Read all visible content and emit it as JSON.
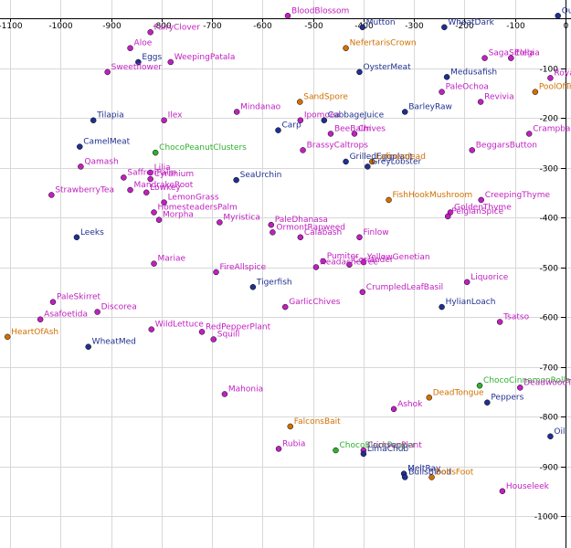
{
  "chart_data": {
    "type": "scatter",
    "title": "",
    "xlabel": "",
    "ylabel": "",
    "xlim": [
      -1110,
      0
    ],
    "ylim": [
      -1055,
      0
    ],
    "grid": true,
    "x_ticks": [
      -1100,
      -1000,
      -900,
      -800,
      -700,
      -600,
      -500,
      -400,
      -300,
      -200,
      -100,
      0
    ],
    "y_ticks": [
      -100,
      -200,
      -300,
      -400,
      -500,
      -600,
      -700,
      -800,
      -900,
      -1000
    ],
    "groups": {
      "magenta": "#c020c0",
      "blue": "#203090",
      "orange": "#d07000",
      "green": "#30b030"
    },
    "points": [
      {
        "label": "BloodBlossom",
        "x": -550,
        "y": 5,
        "group": "magenta"
      },
      {
        "label": "Mutton",
        "x": -402,
        "y": -18,
        "group": "blue"
      },
      {
        "label": "WheatDark",
        "x": -240,
        "y": -18,
        "group": "blue"
      },
      {
        "label": "QueenLionfish",
        "x": -15,
        "y": 5,
        "group": "blue"
      },
      {
        "label": "FairyClover",
        "x": -822,
        "y": -28,
        "group": "magenta"
      },
      {
        "label": "Aloe",
        "x": -862,
        "y": -60,
        "group": "magenta"
      },
      {
        "label": "NefertarisCrown",
        "x": -435,
        "y": -60,
        "group": "orange"
      },
      {
        "label": "Eggs",
        "x": -846,
        "y": -88,
        "group": "blue"
      },
      {
        "label": "WeepingPatala",
        "x": -782,
        "y": -88,
        "group": "magenta"
      },
      {
        "label": "SagaSitolla",
        "x": -160,
        "y": -80,
        "group": "magenta"
      },
      {
        "label": "Elegia",
        "x": -108,
        "y": -80,
        "group": "magenta"
      },
      {
        "label": "Sweetflower",
        "x": -907,
        "y": -108,
        "group": "magenta"
      },
      {
        "label": "OysterMeat",
        "x": -408,
        "y": -108,
        "group": "blue"
      },
      {
        "label": "Medusafish",
        "x": -235,
        "y": -118,
        "group": "blue"
      },
      {
        "label": "RoyalRosemary",
        "x": -30,
        "y": -120,
        "group": "magenta"
      },
      {
        "label": "PaleOchoa",
        "x": -245,
        "y": -148,
        "group": "magenta"
      },
      {
        "label": "PoolOfTranquility",
        "x": -60,
        "y": -148,
        "group": "orange"
      },
      {
        "label": "Revivia",
        "x": -168,
        "y": -168,
        "group": "magenta"
      },
      {
        "label": "SandSpore",
        "x": -526,
        "y": -168,
        "group": "orange"
      },
      {
        "label": "Mindanao",
        "x": -651,
        "y": -188,
        "group": "magenta"
      },
      {
        "label": "BarleyRaw",
        "x": -318,
        "y": -188,
        "group": "blue"
      },
      {
        "label": "Tilapia",
        "x": -935,
        "y": -205,
        "group": "blue"
      },
      {
        "label": "Ilex",
        "x": -795,
        "y": -205,
        "group": "magenta"
      },
      {
        "label": "Ipomoea",
        "x": -525,
        "y": -205,
        "group": "magenta"
      },
      {
        "label": "CabbageJuice",
        "x": -478,
        "y": -205,
        "group": "blue"
      },
      {
        "label": "Carp",
        "x": -569,
        "y": -225,
        "group": "blue"
      },
      {
        "label": "BeeBalm",
        "x": -465,
        "y": -232,
        "group": "magenta"
      },
      {
        "label": "Chives",
        "x": -418,
        "y": -232,
        "group": "magenta"
      },
      {
        "label": "Crampbark",
        "x": -72,
        "y": -232,
        "group": "magenta"
      },
      {
        "label": "CamelMeat",
        "x": -962,
        "y": -258,
        "group": "blue"
      },
      {
        "label": "BrassyCaltrops",
        "x": -520,
        "y": -265,
        "group": "magenta"
      },
      {
        "label": "BeggarsButton",
        "x": -185,
        "y": -265,
        "group": "magenta"
      },
      {
        "label": "ChocoPeanutClusters",
        "x": -812,
        "y": -270,
        "group": "green"
      },
      {
        "label": "GrilledEggplant",
        "x": -435,
        "y": -288,
        "group": "blue"
      },
      {
        "label": "Lafinesdead",
        "x": -383,
        "y": -288,
        "group": "orange"
      },
      {
        "label": "GreyLobster",
        "x": -392,
        "y": -298,
        "group": "blue"
      },
      {
        "label": "Qamash",
        "x": -960,
        "y": -298,
        "group": "magenta"
      },
      {
        "label": "Lilia",
        "x": -822,
        "y": -310,
        "group": "magenta"
      },
      {
        "label": "SeaUrchin",
        "x": -652,
        "y": -325,
        "group": "blue"
      },
      {
        "label": "SaffronPalm",
        "x": -875,
        "y": -320,
        "group": "magenta"
      },
      {
        "label": "Cyranium",
        "x": -822,
        "y": -323,
        "group": "magenta"
      },
      {
        "label": "StrawberryTea",
        "x": -1018,
        "y": -355,
        "group": "magenta"
      },
      {
        "label": "MandrakeRoot",
        "x": -862,
        "y": -345,
        "group": "magenta"
      },
      {
        "label": "Lowkey",
        "x": -830,
        "y": -350,
        "group": "magenta"
      },
      {
        "label": "FishHookMushroom",
        "x": -350,
        "y": -365,
        "group": "orange"
      },
      {
        "label": "CreepingThyme",
        "x": -167,
        "y": -365,
        "group": "magenta"
      },
      {
        "label": "LemonGrass",
        "x": -795,
        "y": -370,
        "group": "magenta"
      },
      {
        "label": "HomesteadersPalm",
        "x": -815,
        "y": -390,
        "group": "magenta"
      },
      {
        "label": "GoldenThyme",
        "x": -228,
        "y": -390,
        "group": "magenta"
      },
      {
        "label": "PelgianSpice",
        "x": -233,
        "y": -398,
        "group": "magenta"
      },
      {
        "label": "Morpha",
        "x": -805,
        "y": -405,
        "group": "magenta"
      },
      {
        "label": "Myristica",
        "x": -685,
        "y": -410,
        "group": "magenta"
      },
      {
        "label": "PaleDhanasa",
        "x": -583,
        "y": -415,
        "group": "magenta"
      },
      {
        "label": "Leeks",
        "x": -968,
        "y": -440,
        "group": "blue"
      },
      {
        "label": "OrmontRapweed",
        "x": -580,
        "y": -430,
        "group": "magenta"
      },
      {
        "label": "Calabash",
        "x": -525,
        "y": -440,
        "group": "magenta"
      },
      {
        "label": "Finlow",
        "x": -408,
        "y": -440,
        "group": "magenta"
      },
      {
        "label": "YellowGenetian",
        "x": -400,
        "y": -490,
        "group": "magenta"
      },
      {
        "label": "Mariae",
        "x": -815,
        "y": -493,
        "group": "magenta"
      },
      {
        "label": "Pumiter",
        "x": -480,
        "y": -488,
        "group": "magenta"
      },
      {
        "label": "FireAllspice",
        "x": -692,
        "y": -510,
        "group": "magenta"
      },
      {
        "label": "Coriander",
        "x": -428,
        "y": -495,
        "group": "magenta"
      },
      {
        "label": "HeadacheTree",
        "x": -494,
        "y": -500,
        "group": "magenta"
      },
      {
        "label": "Liquorice",
        "x": -195,
        "y": -530,
        "group": "magenta"
      },
      {
        "label": "Tigerfish",
        "x": -619,
        "y": -540,
        "group": "blue"
      },
      {
        "label": "CrumpledLeafBasil",
        "x": -402,
        "y": -550,
        "group": "magenta"
      },
      {
        "label": "PaleSkirret",
        "x": -1015,
        "y": -570,
        "group": "magenta"
      },
      {
        "label": "GarlicChives",
        "x": -555,
        "y": -580,
        "group": "magenta"
      },
      {
        "label": "HylianLoach",
        "x": -245,
        "y": -580,
        "group": "blue"
      },
      {
        "label": "Discorea",
        "x": -927,
        "y": -590,
        "group": "magenta"
      },
      {
        "label": "Asafoetida",
        "x": -1040,
        "y": -605,
        "group": "magenta"
      },
      {
        "label": "Tsatso",
        "x": -130,
        "y": -610,
        "group": "magenta"
      },
      {
        "label": "WildLettuce",
        "x": -820,
        "y": -625,
        "group": "magenta"
      },
      {
        "label": "HeartOfAsh",
        "x": -1105,
        "y": -640,
        "group": "orange"
      },
      {
        "label": "RedPepperPlant",
        "x": -720,
        "y": -630,
        "group": "magenta"
      },
      {
        "label": "Squill",
        "x": -697,
        "y": -645,
        "group": "magenta"
      },
      {
        "label": "WheatMed",
        "x": -945,
        "y": -660,
        "group": "blue"
      },
      {
        "label": "Mahonia",
        "x": -675,
        "y": -755,
        "group": "magenta"
      },
      {
        "label": "ChocoCinnamonRolls",
        "x": -170,
        "y": -738,
        "group": "green"
      },
      {
        "label": "DeadwoodTree",
        "x": -90,
        "y": -742,
        "group": "magenta"
      },
      {
        "label": "DeadTongue",
        "x": -270,
        "y": -762,
        "group": "orange"
      },
      {
        "label": "Peppers",
        "x": -155,
        "y": -772,
        "group": "blue"
      },
      {
        "label": "Ashok",
        "x": -340,
        "y": -785,
        "group": "magenta"
      },
      {
        "label": "FalconsBait",
        "x": -545,
        "y": -820,
        "group": "orange"
      },
      {
        "label": "Oil",
        "x": -30,
        "y": -840,
        "group": "blue"
      },
      {
        "label": "ChocoBlackPepper",
        "x": -455,
        "y": -868,
        "group": "green"
      },
      {
        "label": "Rubia",
        "x": -568,
        "y": -865,
        "group": "magenta"
      },
      {
        "label": "CrimsonPlant",
        "x": -400,
        "y": -868,
        "group": "magenta"
      },
      {
        "label": "LimaChub",
        "x": -400,
        "y": -875,
        "group": "blue"
      },
      {
        "label": "MeltRay",
        "x": -320,
        "y": -915,
        "group": "blue"
      },
      {
        "label": "BullsBlood",
        "x": -318,
        "y": -922,
        "group": "blue"
      },
      {
        "label": "BoltsFoot",
        "x": -265,
        "y": -922,
        "group": "orange"
      },
      {
        "label": "Houseleek",
        "x": -125,
        "y": -950,
        "group": "magenta"
      }
    ]
  }
}
